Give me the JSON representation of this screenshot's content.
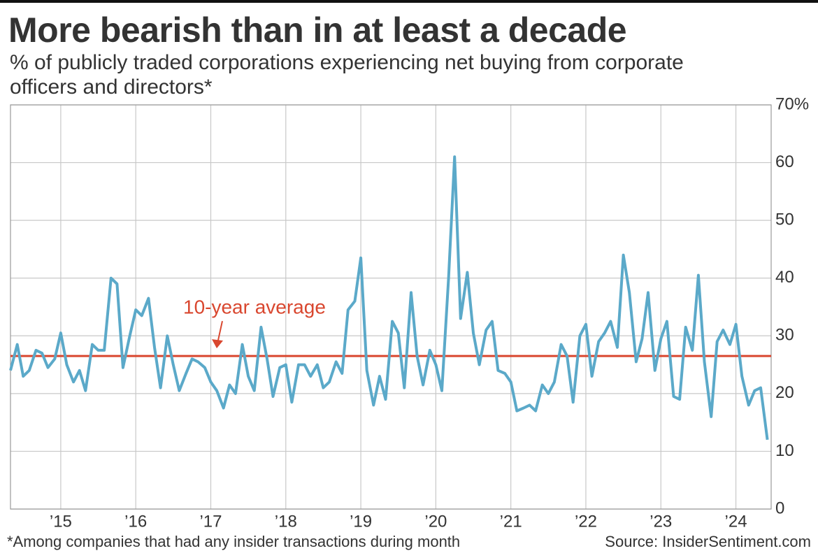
{
  "chart_data": {
    "type": "line",
    "title": "More bearish than in at least a decade",
    "subtitle": "% of publicly traded corporations experiencing net buying from corporate officers and directors*",
    "footnote": "*Among companies that had any insider transactions during month",
    "source": "Source: InsiderSentiment.com",
    "color": "#5ba9c9",
    "x": [
      2014.33,
      2014.42,
      2014.5,
      2014.58,
      2014.67,
      2014.75,
      2014.83,
      2014.92,
      2015.0,
      2015.08,
      2015.17,
      2015.25,
      2015.33,
      2015.42,
      2015.5,
      2015.58,
      2015.67,
      2015.75,
      2015.83,
      2015.92,
      2016.0,
      2016.08,
      2016.17,
      2016.25,
      2016.33,
      2016.42,
      2016.5,
      2016.58,
      2016.67,
      2016.75,
      2016.83,
      2016.92,
      2017.0,
      2017.08,
      2017.17,
      2017.25,
      2017.33,
      2017.42,
      2017.5,
      2017.58,
      2017.67,
      2017.75,
      2017.83,
      2017.92,
      2018.0,
      2018.08,
      2018.17,
      2018.25,
      2018.33,
      2018.42,
      2018.5,
      2018.58,
      2018.67,
      2018.75,
      2018.83,
      2018.92,
      2019.0,
      2019.08,
      2019.17,
      2019.25,
      2019.33,
      2019.42,
      2019.5,
      2019.58,
      2019.67,
      2019.75,
      2019.83,
      2019.92,
      2020.0,
      2020.08,
      2020.17,
      2020.25,
      2020.33,
      2020.42,
      2020.5,
      2020.58,
      2020.67,
      2020.75,
      2020.83,
      2020.92,
      2021.0,
      2021.08,
      2021.17,
      2021.25,
      2021.33,
      2021.42,
      2021.5,
      2021.58,
      2021.67,
      2021.75,
      2021.83,
      2021.92,
      2022.0,
      2022.08,
      2022.17,
      2022.25,
      2022.33,
      2022.42,
      2022.5,
      2022.58,
      2022.67,
      2022.75,
      2022.83,
      2022.92,
      2023.0,
      2023.08,
      2023.17,
      2023.25,
      2023.33,
      2023.42,
      2023.5,
      2023.58,
      2023.67,
      2023.75,
      2023.83,
      2023.92,
      2024.0,
      2024.08,
      2024.17,
      2024.25,
      2024.33,
      2024.42
    ],
    "values": [
      24,
      28.5,
      23,
      24,
      27.5,
      27,
      24.5,
      26,
      30.5,
      25,
      22,
      24,
      20.5,
      28.5,
      27.5,
      27.5,
      40,
      39,
      24.5,
      30,
      34.5,
      33.5,
      36.5,
      28,
      21,
      30,
      25,
      20.5,
      23.5,
      26,
      25.5,
      24.5,
      22,
      20.5,
      17.5,
      21.5,
      20,
      28.5,
      23,
      20.5,
      31.5,
      26,
      19.5,
      24.5,
      25,
      18.5,
      25,
      25,
      23,
      25,
      21,
      22,
      25.5,
      23.5,
      34.5,
      36,
      43.5,
      24,
      18,
      23,
      19,
      32.5,
      30.5,
      21,
      37.5,
      26.5,
      21.5,
      27.5,
      25,
      20.5,
      40,
      61,
      33,
      41,
      30.5,
      25,
      31,
      32.5,
      24,
      23.5,
      22,
      17,
      17.5,
      18,
      17,
      21.5,
      20,
      22,
      28.5,
      26.5,
      18.5,
      30,
      32,
      23,
      29,
      30.5,
      32.5,
      28,
      44,
      37.5,
      25.5,
      29.5,
      37.5,
      24,
      29.5,
      32.5,
      19.5,
      19,
      31.5,
      27.5,
      40.5,
      25.5,
      16,
      29,
      31,
      28.5,
      32,
      23,
      18,
      20.5,
      21,
      12
    ],
    "xlim": [
      2014.33,
      2024.47
    ],
    "xticks": [
      {
        "value": 2015,
        "label": "’15"
      },
      {
        "value": 2016,
        "label": "’16"
      },
      {
        "value": 2017,
        "label": "’17"
      },
      {
        "value": 2018,
        "label": "’18"
      },
      {
        "value": 2019,
        "label": "’19"
      },
      {
        "value": 2020,
        "label": "’20"
      },
      {
        "value": 2021,
        "label": "’21"
      },
      {
        "value": 2022,
        "label": "’22"
      },
      {
        "value": 2023,
        "label": "’23"
      },
      {
        "value": 2024,
        "label": "’24"
      }
    ],
    "ylim": [
      0,
      70
    ],
    "yticks": [
      0,
      10,
      20,
      30,
      40,
      50,
      60,
      {
        "value": 70,
        "label": "70%"
      }
    ],
    "grid": true,
    "average": {
      "value": 26.5,
      "label": "10-year average",
      "color": "#d9472f"
    }
  }
}
